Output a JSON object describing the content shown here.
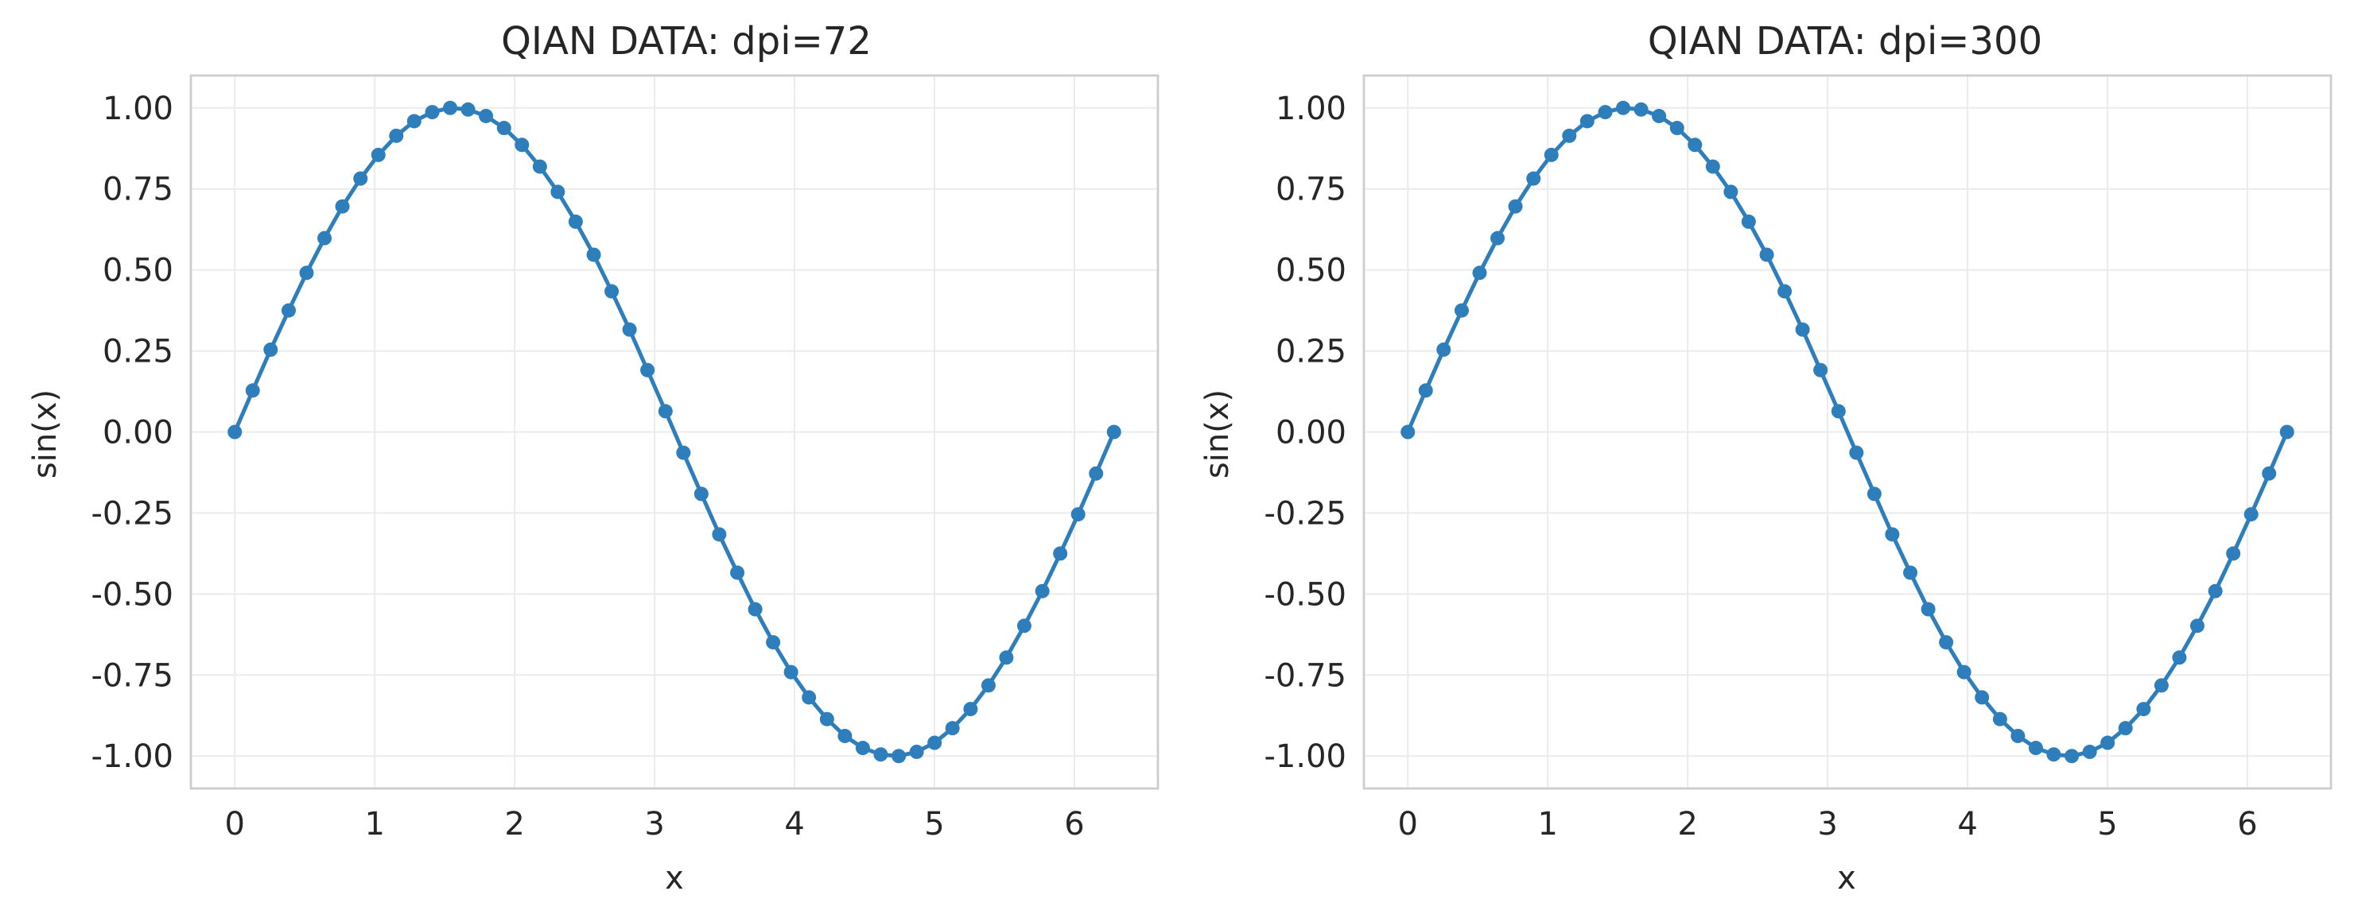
{
  "chart_data": [
    {
      "type": "line",
      "title": "QIAN DATA: dpi=72",
      "xlabel": "x",
      "ylabel": "sin(x)",
      "xlim": [
        -0.314,
        6.597
      ],
      "ylim": [
        -1.1,
        1.1
      ],
      "xticks": [
        0,
        1,
        2,
        3,
        4,
        5,
        6
      ],
      "xtick_labels": [
        "0",
        "1",
        "2",
        "3",
        "4",
        "5",
        "6"
      ],
      "yticks": [
        1.0,
        0.75,
        0.5,
        0.25,
        0.0,
        -0.25,
        -0.5,
        -0.75,
        -1.0
      ],
      "ytick_labels": [
        "1.00",
        "0.75",
        "0.50",
        "0.25",
        "0.00",
        "-0.25",
        "-0.50",
        "-0.75",
        "-1.00"
      ],
      "grid": true,
      "marker": "circle",
      "color": "#2e7ebc",
      "series": [
        {
          "x": [
            0.0,
            0.128,
            0.256,
            0.385,
            0.513,
            0.641,
            0.769,
            0.898,
            1.026,
            1.154,
            1.282,
            1.411,
            1.539,
            1.667,
            1.795,
            1.924,
            2.052,
            2.18,
            2.308,
            2.436,
            2.565,
            2.693,
            2.821,
            2.949,
            3.078,
            3.206,
            3.334,
            3.462,
            3.591,
            3.719,
            3.847,
            3.975,
            4.103,
            4.232,
            4.36,
            4.488,
            4.616,
            4.745,
            4.873,
            5.001,
            5.129,
            5.258,
            5.386,
            5.514,
            5.642,
            5.771,
            5.899,
            6.027,
            6.155,
            6.283
          ],
          "y": [
            0.0,
            0.128,
            0.254,
            0.375,
            0.491,
            0.598,
            0.696,
            0.782,
            0.855,
            0.914,
            0.959,
            0.987,
            1.0,
            0.995,
            0.975,
            0.938,
            0.886,
            0.819,
            0.741,
            0.649,
            0.547,
            0.434,
            0.316,
            0.191,
            0.064,
            -0.064,
            -0.191,
            -0.316,
            -0.434,
            -0.547,
            -0.649,
            -0.741,
            -0.819,
            -0.886,
            -0.938,
            -0.975,
            -0.995,
            -1.0,
            -0.987,
            -0.959,
            -0.914,
            -0.855,
            -0.782,
            -0.696,
            -0.598,
            -0.491,
            -0.375,
            -0.254,
            -0.128,
            0.0
          ]
        }
      ]
    },
    {
      "type": "line",
      "title": "QIAN DATA: dpi=300",
      "xlabel": "x",
      "ylabel": "sin(x)",
      "xlim": [
        -0.314,
        6.597
      ],
      "ylim": [
        -1.1,
        1.1
      ],
      "xticks": [
        0,
        1,
        2,
        3,
        4,
        5,
        6
      ],
      "xtick_labels": [
        "0",
        "1",
        "2",
        "3",
        "4",
        "5",
        "6"
      ],
      "yticks": [
        1.0,
        0.75,
        0.5,
        0.25,
        0.0,
        -0.25,
        -0.5,
        -0.75,
        -1.0
      ],
      "ytick_labels": [
        "1.00",
        "0.75",
        "0.50",
        "0.25",
        "0.00",
        "-0.25",
        "-0.50",
        "-0.75",
        "-1.00"
      ],
      "grid": true,
      "marker": "circle",
      "color": "#2e7ebc",
      "series": [
        {
          "x": [
            0.0,
            0.128,
            0.256,
            0.385,
            0.513,
            0.641,
            0.769,
            0.898,
            1.026,
            1.154,
            1.282,
            1.411,
            1.539,
            1.667,
            1.795,
            1.924,
            2.052,
            2.18,
            2.308,
            2.436,
            2.565,
            2.693,
            2.821,
            2.949,
            3.078,
            3.206,
            3.334,
            3.462,
            3.591,
            3.719,
            3.847,
            3.975,
            4.103,
            4.232,
            4.36,
            4.488,
            4.616,
            4.745,
            4.873,
            5.001,
            5.129,
            5.258,
            5.386,
            5.514,
            5.642,
            5.771,
            5.899,
            6.027,
            6.155,
            6.283
          ],
          "y": [
            0.0,
            0.128,
            0.254,
            0.375,
            0.491,
            0.598,
            0.696,
            0.782,
            0.855,
            0.914,
            0.959,
            0.987,
            1.0,
            0.995,
            0.975,
            0.938,
            0.886,
            0.819,
            0.741,
            0.649,
            0.547,
            0.434,
            0.316,
            0.191,
            0.064,
            -0.064,
            -0.191,
            -0.316,
            -0.434,
            -0.547,
            -0.649,
            -0.741,
            -0.819,
            -0.886,
            -0.938,
            -0.975,
            -0.995,
            -1.0,
            -0.987,
            -0.959,
            -0.914,
            -0.855,
            -0.782,
            -0.696,
            -0.598,
            -0.491,
            -0.375,
            -0.254,
            -0.128,
            0.0
          ]
        }
      ]
    }
  ]
}
